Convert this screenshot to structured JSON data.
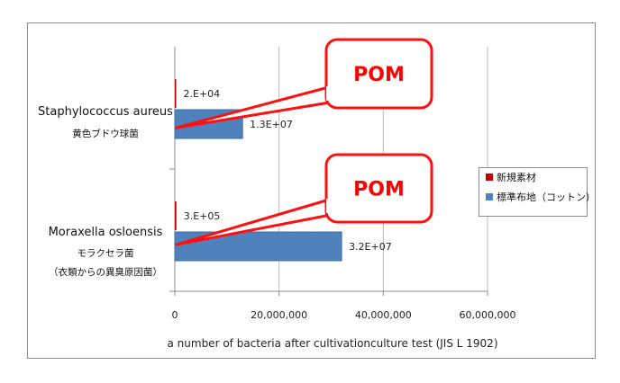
{
  "chart_data": {
    "type": "bar",
    "orientation": "horizontal",
    "categories": [
      {
        "name": "Staphylococcus aureus",
        "sublabels": [
          "黄色ブドウ球菌"
        ]
      },
      {
        "name": "Moraxella osloensis",
        "sublabels": [
          "モラクセラ菌",
          "（衣類からの異臭原因菌）"
        ]
      }
    ],
    "series": [
      {
        "name": "新規素材",
        "color": "#c00000",
        "values": [
          20000,
          300000
        ],
        "labels": [
          "2.E+04",
          "3.E+05"
        ]
      },
      {
        "name": "標準布地（コットン）",
        "color": "#4f81bd",
        "values": [
          13000000,
          32000000
        ],
        "labels": [
          "1.3E+07",
          "3.2E+07"
        ]
      }
    ],
    "xlim": [
      0,
      60000000
    ],
    "x_ticks": [
      {
        "value": 0,
        "label": "0"
      },
      {
        "value": 20000000,
        "label": "20,000,000"
      },
      {
        "value": 40000000,
        "label": "40,000,000"
      },
      {
        "value": 60000000,
        "label": "60,000,000"
      }
    ],
    "xlabel": "a number of bacteria after cultivationculture test (JIS L 1902)",
    "grid": "vertical",
    "legend": "right",
    "callouts": [
      {
        "text": "POM",
        "category_index": 0
      },
      {
        "text": "POM",
        "category_index": 1
      }
    ]
  }
}
